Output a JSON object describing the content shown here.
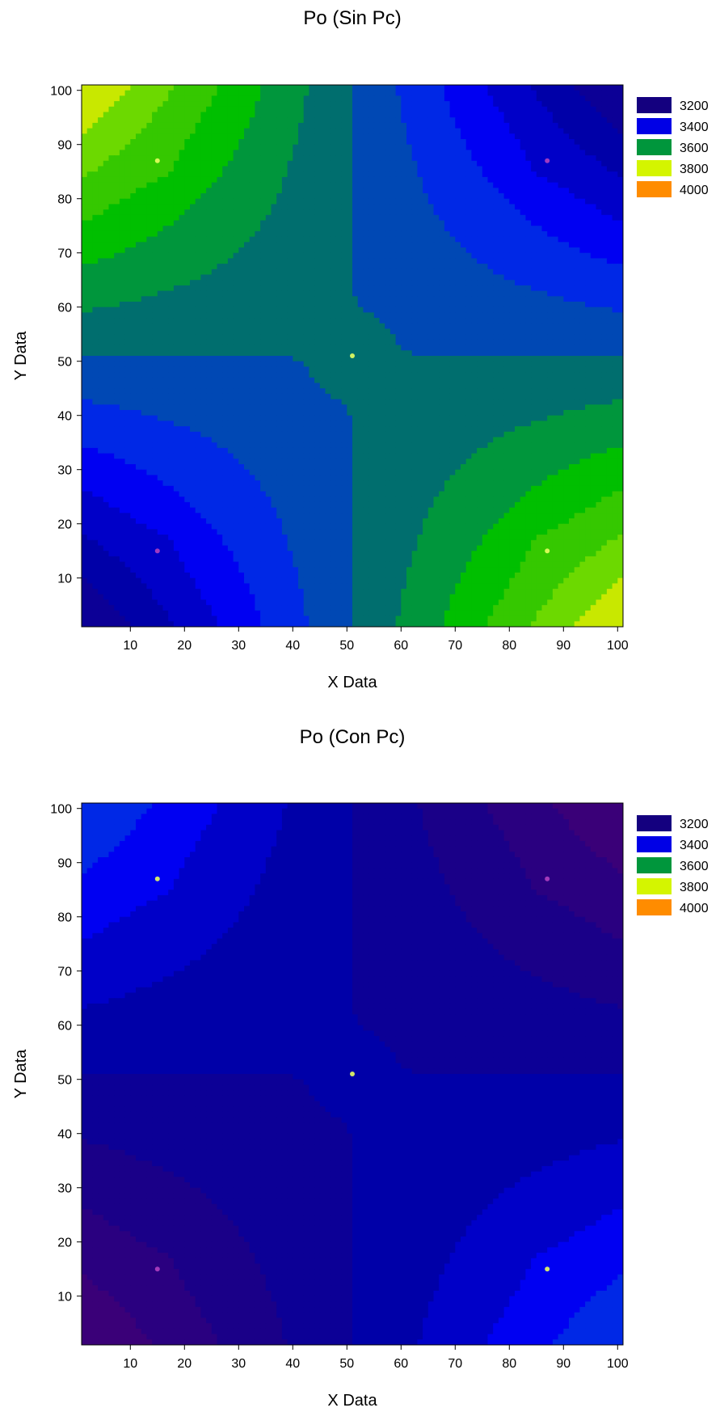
{
  "chart_data": [
    {
      "type": "contour",
      "title": "Po (Sin Pc)",
      "xlabel": "X Data",
      "ylabel": "Y Data",
      "xlim": [
        1,
        101
      ],
      "ylim": [
        1,
        101
      ],
      "xticks": [
        10,
        20,
        30,
        40,
        50,
        60,
        70,
        80,
        90,
        100
      ],
      "yticks": [
        10,
        20,
        30,
        40,
        50,
        60,
        70,
        80,
        90,
        100
      ],
      "grid": false,
      "legend_position": "right",
      "legend": [
        {
          "label": "3200",
          "color": "#14007f"
        },
        {
          "label": "3400",
          "color": "#0000e6"
        },
        {
          "label": "3600",
          "color": "#00963c"
        },
        {
          "label": "3800",
          "color": "#d4f500"
        },
        {
          "label": "4000",
          "color": "#ff8c00"
        }
      ],
      "z_range": [
        3150,
        3830
      ],
      "features": [
        {
          "x": 15,
          "y": 87,
          "value": 3830,
          "kind": "peak"
        },
        {
          "x": 87,
          "y": 15,
          "value": 3830,
          "kind": "peak"
        },
        {
          "x": 15,
          "y": 15,
          "value": 3150,
          "kind": "trough"
        },
        {
          "x": 87,
          "y": 87,
          "value": 3150,
          "kind": "trough"
        },
        {
          "x": 51,
          "y": 51,
          "value": 3660,
          "kind": "local-bump"
        }
      ]
    },
    {
      "type": "contour",
      "title": "Po (Con Pc)",
      "xlabel": "X Data",
      "ylabel": "Y Data",
      "xlim": [
        1,
        101
      ],
      "ylim": [
        1,
        101
      ],
      "xticks": [
        10,
        20,
        30,
        40,
        50,
        60,
        70,
        80,
        90,
        100
      ],
      "yticks": [
        10,
        20,
        30,
        40,
        50,
        60,
        70,
        80,
        90,
        100
      ],
      "grid": false,
      "legend_position": "right",
      "legend": [
        {
          "label": "3200",
          "color": "#14007f"
        },
        {
          "label": "3400",
          "color": "#0000e6"
        },
        {
          "label": "3600",
          "color": "#00963c"
        },
        {
          "label": "3800",
          "color": "#d4f500"
        },
        {
          "label": "4000",
          "color": "#ff8c00"
        }
      ],
      "z_range": [
        3100,
        3380
      ],
      "features": [
        {
          "x": 15,
          "y": 87,
          "value": 3380,
          "kind": "peak"
        },
        {
          "x": 87,
          "y": 15,
          "value": 3380,
          "kind": "peak"
        },
        {
          "x": 15,
          "y": 15,
          "value": 3100,
          "kind": "trough"
        },
        {
          "x": 87,
          "y": 87,
          "value": 3100,
          "kind": "trough"
        },
        {
          "x": 51,
          "y": 51,
          "value": 3290,
          "kind": "local-bump"
        }
      ]
    }
  ]
}
